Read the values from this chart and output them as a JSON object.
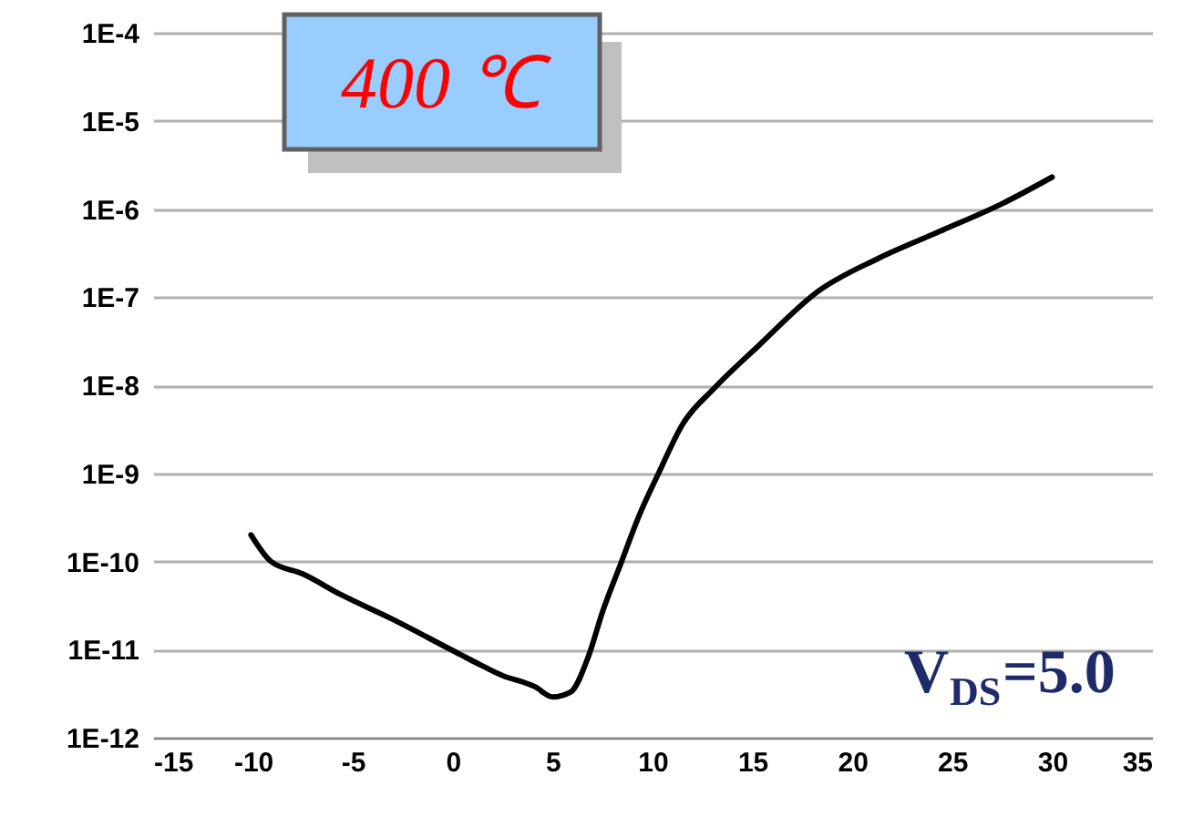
{
  "chart_data": {
    "type": "line",
    "log": "y",
    "grid": "y",
    "marker": "none",
    "line_style": "solid",
    "x": [
      -10.1,
      -9.1,
      -7.5,
      -5.6,
      -3,
      -0.1,
      1.5,
      2.65,
      3.5,
      4.1,
      5.0,
      5.9,
      6.8,
      7.5,
      8.4,
      9.3,
      10.3,
      11.5,
      13.1,
      15.3,
      18.3,
      21.3,
      24.4,
      27.5,
      30
    ],
    "series": [
      {
        "color": "#000000",
        "values": [
          2e-10,
          1e-10,
          7.2e-11,
          4.2e-11,
          2.2e-11,
          1e-11,
          6.5e-12,
          4.9e-12,
          4.3e-12,
          3.8e-12,
          2.9e-12,
          3.3e-12,
          8.5e-12,
          2.7e-11,
          9.3e-11,
          3.2e-10,
          1e-09,
          3.6e-09,
          9.3e-09,
          2.8e-08,
          1.17e-07,
          2.75e-07,
          5.6e-07,
          1.15e-06,
          2.3e-06
        ]
      }
    ],
    "xlim": [
      -15,
      35
    ],
    "xticks": [
      -15,
      -10,
      -5,
      0,
      5,
      10,
      15,
      20,
      25,
      30,
      35
    ],
    "ylim": [
      1e-12,
      0.0001
    ],
    "yticks": [
      {
        "value": 1e-12,
        "label": "1E-12"
      },
      {
        "value": 1e-11,
        "label": "1E-11"
      },
      {
        "value": 1e-10,
        "label": "1E-10"
      },
      {
        "value": 1e-09,
        "label": "1E-9"
      },
      {
        "value": 1e-08,
        "label": "1E-8"
      },
      {
        "value": 1e-07,
        "label": "1E-7"
      },
      {
        "value": 1e-06,
        "label": "1E-6"
      },
      {
        "value": 1e-05,
        "label": "1E-5"
      },
      {
        "value": 0.0001,
        "label": "1E-4"
      }
    ],
    "annotations": [
      "400 ℃",
      "V$_{DS}$=5.0"
    ]
  }
}
